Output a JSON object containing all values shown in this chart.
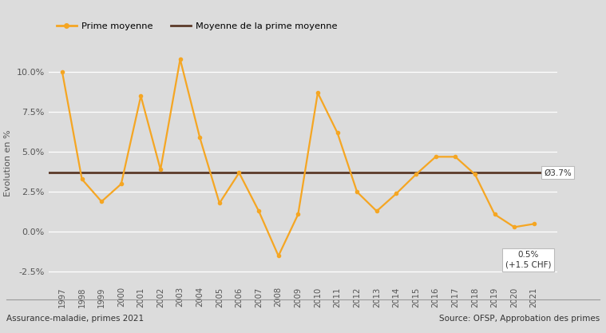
{
  "years": [
    1997,
    1998,
    1999,
    2000,
    2001,
    2002,
    2003,
    2004,
    2005,
    2006,
    2007,
    2008,
    2009,
    2010,
    2011,
    2012,
    2013,
    2014,
    2015,
    2016,
    2017,
    2018,
    2019,
    2020,
    2021
  ],
  "values": [
    10.0,
    3.3,
    1.9,
    3.0,
    8.5,
    3.9,
    10.8,
    5.9,
    1.8,
    3.7,
    1.3,
    -1.5,
    1.1,
    8.7,
    6.2,
    2.5,
    1.3,
    2.4,
    3.6,
    4.7,
    4.7,
    3.6,
    1.1,
    0.3,
    0.5
  ],
  "mean_value": 3.7,
  "line_color": "#F5A623",
  "mean_color": "#5B3A29",
  "fig_bg_color": "#DCDCDC",
  "plot_bg_color": "#DCDCDC",
  "legend_label_line": "Prime moyenne",
  "legend_label_mean": "Moyenne de la prime moyenne",
  "ylabel": "Evolution en %",
  "ylim": [
    -3.2,
    11.8
  ],
  "yticks": [
    -2.5,
    0.0,
    2.5,
    5.0,
    7.5,
    10.0
  ],
  "mean_label": "Ø3.7%",
  "last_label_line1": "0.5%",
  "last_label_line2": "(+1.5 CHF)",
  "footer_left": "Assurance-maladie, primes 2021",
  "footer_right": "Source: OFSP, Approbation des primes"
}
